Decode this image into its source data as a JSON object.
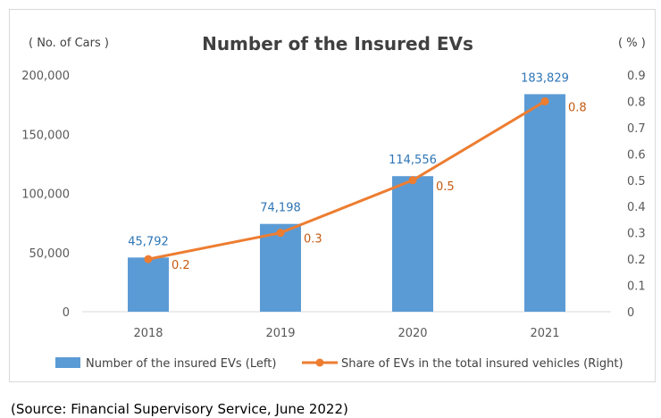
{
  "chart_data": {
    "type": "bar",
    "title": "Number of the Insured EVs",
    "categories": [
      "2018",
      "2019",
      "2020",
      "2021"
    ],
    "left_axis_unit": "( No. of Cars )",
    "right_axis_unit": "( % )",
    "left_ylim": [
      0,
      200000
    ],
    "left_ticks": [
      "0",
      "50,000",
      "100,000",
      "150,000",
      "200,000"
    ],
    "right_ylim": [
      0,
      0.9
    ],
    "right_ticks": [
      "0",
      "0.1",
      "0.2",
      "0.3",
      "0.4",
      "0.5",
      "0.6",
      "0.7",
      "0.8",
      "0.9"
    ],
    "grid": false,
    "legend_position": "bottom",
    "series": [
      {
        "name": "Number of the insured EVs (Left)",
        "type": "bar",
        "axis": "left",
        "values": [
          45792,
          74198,
          114556,
          183829
        ],
        "labels": [
          "45,792",
          "74,198",
          "114,556",
          "183,829"
        ],
        "color": "#5b9bd5"
      },
      {
        "name": "Share of EVs in the total insured vehicles (Right)",
        "type": "line",
        "axis": "right",
        "values": [
          0.2,
          0.3,
          0.5,
          0.8
        ],
        "labels": [
          "0.2",
          "0.3",
          "0.5",
          "0.8"
        ],
        "color": "#ed7d31"
      }
    ]
  },
  "source_note": "(Source:  Financial Supervisory Service, June 2022)"
}
